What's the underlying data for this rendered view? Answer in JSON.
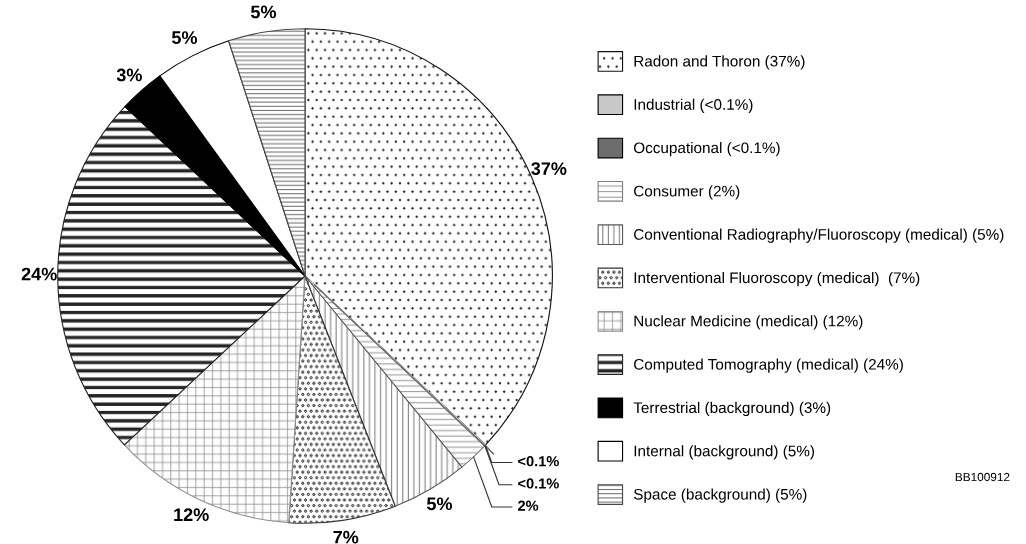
{
  "chart_data": {
    "type": "pie",
    "categories": [
      "Radon and Thoron (37%)",
      "Industrial (<0.1%)",
      "Occupational (<0.1%)",
      "Consumer (2%)",
      "Conventional Radiography/Fluoroscopy (medical) (5%)",
      "Interventional Fluoroscopy (medical)  (7%)",
      "Nuclear Medicine (medical) (12%)",
      "Computed Tomography (medical) (24%)",
      "Terrestrial (background) (3%)",
      "Internal (background) (5%)",
      "Space (background) (5%)"
    ],
    "values": [
      37,
      0.05,
      0.05,
      2,
      5,
      7,
      12,
      24,
      3,
      5,
      5
    ],
    "colors": [
      "#121212",
      "#c8c8c8",
      "#6c6c6c",
      "#7e7e7e",
      "#5a5a5a",
      "#363636",
      "#909090",
      "#242424",
      "#000000",
      "#ffffff",
      "#484848"
    ],
    "value_labels": [
      "37%",
      "<0.1%",
      "<0.1%",
      "2%",
      "5%",
      "7%",
      "12%",
      "24%",
      "3%",
      "5%",
      "5%"
    ],
    "legend": "right",
    "annotations": [
      "BB100912"
    ]
  }
}
